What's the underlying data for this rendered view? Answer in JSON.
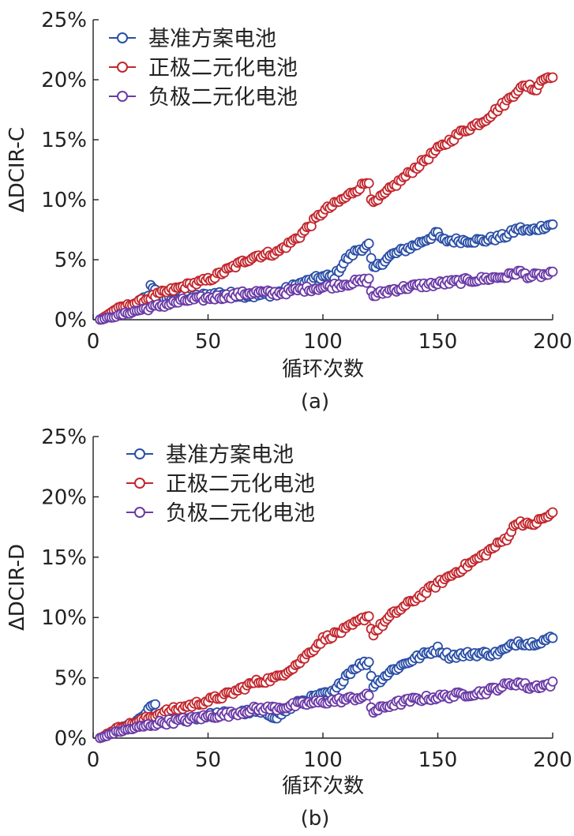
{
  "chart_data": [
    {
      "type": "scatter",
      "panel_label": "(a)",
      "ylabel": "ΔDCIR-C",
      "xlabel": "循环次数",
      "xlim": [
        0,
        200
      ],
      "ylim": [
        0,
        25
      ],
      "xticks": [
        "0",
        "50",
        "100",
        "150",
        "200"
      ],
      "yticks": [
        "0%",
        "5%",
        "10%",
        "15%",
        "20%",
        "25%"
      ],
      "legend_position": "top-left",
      "series": [
        {
          "name": "基准方案电池",
          "color": "#2b4fa6",
          "anchors": [
            [
              3,
              0
            ],
            [
              10,
              0.6
            ],
            [
              20,
              1.5
            ],
            [
              24,
              2.0
            ],
            [
              25,
              2.8
            ],
            [
              27,
              2.6
            ],
            [
              28,
              1.8
            ],
            [
              40,
              1.8
            ],
            [
              55,
              2.2
            ],
            [
              70,
              2.0
            ],
            [
              80,
              2.2
            ],
            [
              90,
              3.0
            ],
            [
              100,
              3.6
            ],
            [
              105,
              3.6
            ],
            [
              110,
              5.0
            ],
            [
              115,
              5.8
            ],
            [
              120,
              6.2
            ],
            [
              121,
              5.0
            ],
            [
              122,
              4.2
            ],
            [
              130,
              5.4
            ],
            [
              140,
              6.2
            ],
            [
              150,
              7.2
            ],
            [
              152,
              6.6
            ],
            [
              160,
              6.6
            ],
            [
              170,
              6.6
            ],
            [
              180,
              7.0
            ],
            [
              185,
              7.6
            ],
            [
              190,
              7.4
            ],
            [
              200,
              8.0
            ]
          ]
        },
        {
          "name": "正极二元化电池",
          "color": "#c2272d",
          "anchors": [
            [
              3,
              0
            ],
            [
              10,
              0.9
            ],
            [
              20,
              1.5
            ],
            [
              30,
              2.2
            ],
            [
              40,
              2.8
            ],
            [
              50,
              3.3
            ],
            [
              60,
              4.3
            ],
            [
              70,
              5.3
            ],
            [
              80,
              5.6
            ],
            [
              90,
              7.0
            ],
            [
              100,
              9.0
            ],
            [
              110,
              10.2
            ],
            [
              120,
              11.6
            ],
            [
              121,
              10.2
            ],
            [
              122,
              9.6
            ],
            [
              130,
              11.0
            ],
            [
              140,
              12.6
            ],
            [
              150,
              14.2
            ],
            [
              160,
              15.6
            ],
            [
              170,
              16.6
            ],
            [
              180,
              18.2
            ],
            [
              185,
              19.2
            ],
            [
              190,
              19.6
            ],
            [
              192,
              19.0
            ],
            [
              195,
              20.0
            ],
            [
              200,
              20.4
            ]
          ]
        },
        {
          "name": "负极二元化电池",
          "color": "#6b3ba6",
          "anchors": [
            [
              3,
              0
            ],
            [
              10,
              0.3
            ],
            [
              20,
              0.8
            ],
            [
              30,
              1.2
            ],
            [
              40,
              1.6
            ],
            [
              50,
              1.8
            ],
            [
              60,
              2.0
            ],
            [
              70,
              2.3
            ],
            [
              80,
              2.2
            ],
            [
              90,
              2.5
            ],
            [
              100,
              2.7
            ],
            [
              110,
              3.0
            ],
            [
              120,
              3.3
            ],
            [
              121,
              2.4
            ],
            [
              122,
              2.0
            ],
            [
              130,
              2.5
            ],
            [
              140,
              2.8
            ],
            [
              150,
              3.0
            ],
            [
              160,
              3.2
            ],
            [
              170,
              3.4
            ],
            [
              180,
              3.6
            ],
            [
              185,
              4.0
            ],
            [
              190,
              3.6
            ],
            [
              200,
              3.8
            ]
          ]
        }
      ]
    },
    {
      "type": "scatter",
      "panel_label": "(b)",
      "ylabel": "ΔDCIR-D",
      "xlabel": "循环次数",
      "xlim": [
        0,
        200
      ],
      "ylim": [
        0,
        25
      ],
      "xticks": [
        "0",
        "50",
        "100",
        "150",
        "200"
      ],
      "yticks": [
        "0%",
        "5%",
        "10%",
        "15%",
        "20%",
        "25%"
      ],
      "legend_position": "top-left",
      "series": [
        {
          "name": "基准方案电池",
          "color": "#2b4fa6",
          "anchors": [
            [
              3,
              0
            ],
            [
              10,
              0.6
            ],
            [
              20,
              1.5
            ],
            [
              25,
              2.5
            ],
            [
              27,
              2.8
            ],
            [
              28,
              1.8
            ],
            [
              40,
              1.6
            ],
            [
              55,
              2.0
            ],
            [
              70,
              2.2
            ],
            [
              80,
              1.8
            ],
            [
              90,
              3.0
            ],
            [
              100,
              3.6
            ],
            [
              105,
              3.8
            ],
            [
              110,
              5.2
            ],
            [
              115,
              6.0
            ],
            [
              120,
              6.3
            ],
            [
              121,
              5.2
            ],
            [
              122,
              4.4
            ],
            [
              130,
              5.6
            ],
            [
              140,
              6.6
            ],
            [
              150,
              7.4
            ],
            [
              155,
              6.8
            ],
            [
              165,
              7.0
            ],
            [
              175,
              7.0
            ],
            [
              180,
              7.4
            ],
            [
              185,
              8.0
            ],
            [
              190,
              7.8
            ],
            [
              200,
              8.3
            ]
          ]
        },
        {
          "name": "正极二元化电池",
          "color": "#c2272d",
          "anchors": [
            [
              3,
              0
            ],
            [
              10,
              0.8
            ],
            [
              20,
              1.4
            ],
            [
              30,
              2.1
            ],
            [
              40,
              2.6
            ],
            [
              50,
              3.1
            ],
            [
              60,
              3.7
            ],
            [
              70,
              4.6
            ],
            [
              80,
              5.0
            ],
            [
              90,
              6.3
            ],
            [
              100,
              8.2
            ],
            [
              110,
              9.0
            ],
            [
              120,
              10.2
            ],
            [
              121,
              9.0
            ],
            [
              122,
              8.7
            ],
            [
              130,
              10.2
            ],
            [
              140,
              11.5
            ],
            [
              150,
              12.8
            ],
            [
              160,
              14.0
            ],
            [
              170,
              15.2
            ],
            [
              180,
              16.6
            ],
            [
              185,
              18.0
            ],
            [
              190,
              17.6
            ],
            [
              200,
              18.6
            ]
          ]
        },
        {
          "name": "负极二元化电池",
          "color": "#6b3ba6",
          "anchors": [
            [
              3,
              0
            ],
            [
              10,
              0.5
            ],
            [
              20,
              0.9
            ],
            [
              30,
              1.3
            ],
            [
              40,
              1.5
            ],
            [
              50,
              1.8
            ],
            [
              60,
              2.0
            ],
            [
              70,
              2.4
            ],
            [
              80,
              2.5
            ],
            [
              90,
              2.8
            ],
            [
              100,
              3.0
            ],
            [
              110,
              3.2
            ],
            [
              120,
              3.5
            ],
            [
              121,
              2.6
            ],
            [
              122,
              2.2
            ],
            [
              130,
              2.8
            ],
            [
              140,
              3.2
            ],
            [
              150,
              3.4
            ],
            [
              160,
              3.6
            ],
            [
              170,
              3.8
            ],
            [
              180,
              4.4
            ],
            [
              185,
              4.6
            ],
            [
              190,
              4.2
            ],
            [
              200,
              4.5
            ]
          ]
        }
      ]
    }
  ]
}
